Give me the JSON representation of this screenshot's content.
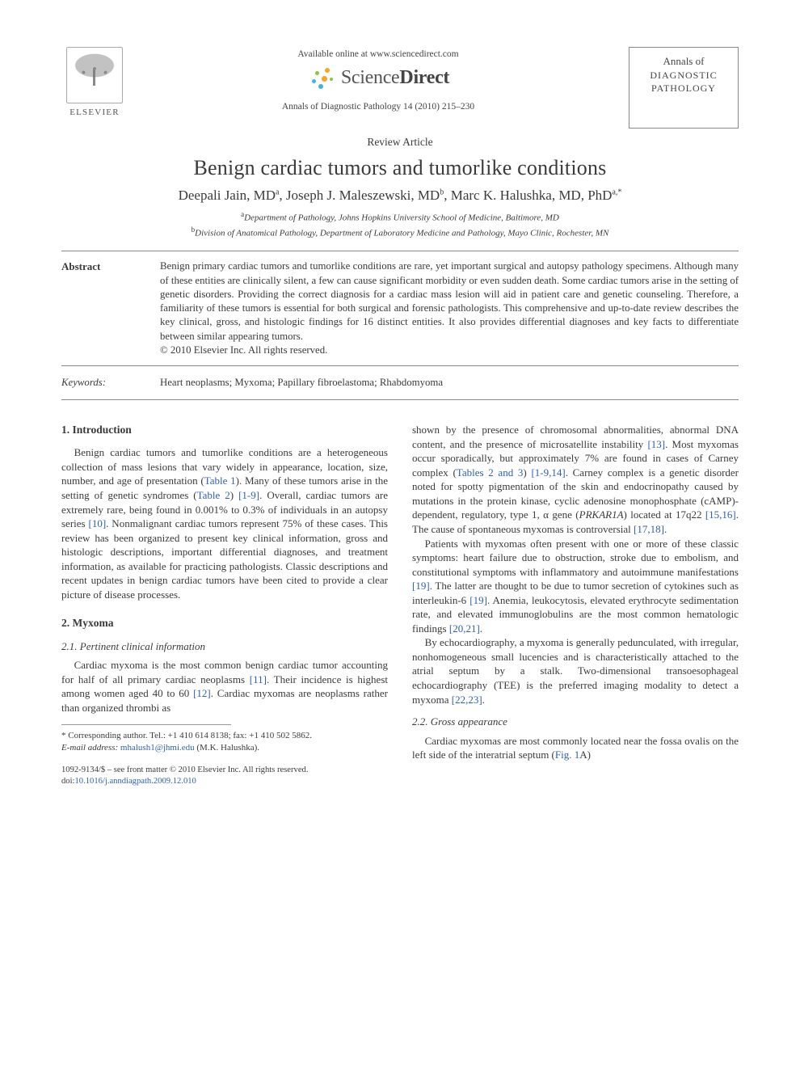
{
  "publisher": {
    "name": "ELSEVIER",
    "available_line": "Available online at www.sciencedirect.com",
    "brand_plain": "Science",
    "brand_bold": "Direct",
    "citation_line": "Annals of Diagnostic Pathology 14 (2010) 215–230"
  },
  "journal_box": {
    "line1": "Annals of",
    "line2": "DIAGNOSTIC",
    "line3": "PATHOLOGY"
  },
  "article": {
    "type": "Review Article",
    "title": "Benign cardiac tumors and tumorlike conditions",
    "authors_html": "Deepali Jain, MD<sup>a</sup>, Joseph J. Maleszewski, MD<sup>b</sup>, Marc K. Halushka, MD, PhD<sup>a,*</sup>",
    "affiliations": {
      "a": "Department of Pathology, Johns Hopkins University School of Medicine, Baltimore, MD",
      "b": "Division of Anatomical Pathology, Department of Laboratory Medicine and Pathology, Mayo Clinic, Rochester, MN"
    }
  },
  "abstract": {
    "label": "Abstract",
    "text": "Benign primary cardiac tumors and tumorlike conditions are rare, yet important surgical and autopsy pathology specimens. Although many of these entities are clinically silent, a few can cause significant morbidity or even sudden death. Some cardiac tumors arise in the setting of genetic disorders. Providing the correct diagnosis for a cardiac mass lesion will aid in patient care and genetic counseling. Therefore, a familiarity of these tumors is essential for both surgical and forensic pathologists. This comprehensive and up-to-date review describes the key clinical, gross, and histologic findings for 16 distinct entities. It also provides differential diagnoses and key facts to differentiate between similar appearing tumors.",
    "copyright": "© 2010 Elsevier Inc. All rights reserved."
  },
  "keywords": {
    "label": "Keywords:",
    "text": "Heart neoplasms; Myxoma; Papillary fibroelastoma; Rhabdomyoma"
  },
  "body": {
    "col1": {
      "s1_heading": "1. Introduction",
      "s1_p1a": "Benign cardiac tumors and tumorlike conditions are a heterogeneous collection of mass lesions that vary widely in appearance, location, size, number, and age of presentation (",
      "s1_link1": "Table 1",
      "s1_p1b": "). Many of these tumors arise in the setting of genetic syndromes (",
      "s1_link2": "Table 2",
      "s1_p1c": ") ",
      "s1_link3": "[1-9]",
      "s1_p1d": ". Overall, cardiac tumors are extremely rare, being found in 0.001% to 0.3% of individuals in an autopsy series ",
      "s1_link4": "[10]",
      "s1_p1e": ". Nonmalignant cardiac tumors represent 75% of these cases. This review has been organized to present key clinical information, gross and histologic descriptions, important differential diagnoses, and treatment information, as available for practicing pathologists. Classic descriptions and recent updates in benign cardiac tumors have been cited to provide a clear picture of disease processes.",
      "s2_heading": "2. Myxoma",
      "s21_heading": "2.1. Pertinent clinical information",
      "s21_p1a": "Cardiac myxoma is the most common benign cardiac tumor accounting for half of all primary cardiac neoplasms ",
      "s21_link1": "[11]",
      "s21_p1b": ". Their incidence is highest among women aged 40 to 60 ",
      "s21_link2": "[12]",
      "s21_p1c": ". Cardiac myxomas are neoplasms rather than organized thrombi as"
    },
    "col2": {
      "p1a": "shown by the presence of chromosomal abnormalities, abnormal DNA content, and the presence of microsatellite instability ",
      "link1": "[13]",
      "p1b": ". Most myxomas occur sporadically, but approximately 7% are found in cases of Carney complex (",
      "link2": "Tables 2 and 3",
      "p1c": ") ",
      "link3": "[1-9,14]",
      "p1d": ". Carney complex is a genetic disorder noted for spotty pigmentation of the skin and endocrinopathy caused by mutations in the protein kinase, cyclic adenosine monophosphate (cAMP)-dependent, regulatory, type 1, α gene (",
      "gene": "PRKAR1A",
      "p1e": ") located at 17q22 ",
      "link4": "[15,16]",
      "p1f": ". The cause of spontaneous myxomas is controversial ",
      "link5": "[17,18]",
      "p1g": ".",
      "p2a": "Patients with myxomas often present with one or more of these classic symptoms: heart failure due to obstruction, stroke due to embolism, and constitutional symptoms with inflammatory and autoimmune manifestations ",
      "link6": "[19]",
      "p2b": ". The latter are thought to be due to tumor secretion of cytokines such as interleukin-6 ",
      "link7": "[19]",
      "p2c": ". Anemia, leukocytosis, elevated erythrocyte sedimentation rate, and elevated immunoglobulins are the most common hematologic findings ",
      "link8": "[20,21]",
      "p2d": ".",
      "p3a": "By echocardiography, a myxoma is generally pedunculated, with irregular, nonhomogeneous small lucencies and is characteristically attached to the atrial septum by a stalk. Two-dimensional transoesophageal echocardiography (TEE) is the preferred imaging modality to detect a myxoma ",
      "link9": "[22,23]",
      "p3b": ".",
      "s22_heading": "2.2. Gross appearance",
      "s22_p1a": "Cardiac myxomas are most commonly located near the fossa ovalis on the left side of the interatrial septum (",
      "s22_link1": "Fig. 1",
      "s22_p1b": "A)"
    }
  },
  "footnote": {
    "corr": "* Corresponding author. Tel.: +1 410 614 8138; fax: +1 410 502 5862.",
    "email_label": "E-mail address:",
    "email": "mhalush1@jhmi.edu",
    "email_tail": " (M.K. Halushka).",
    "issn_line": "1092-9134/$ – see front matter © 2010 Elsevier Inc. All rights reserved.",
    "doi_label": "doi:",
    "doi": "10.1016/j.anndiagpath.2009.12.010"
  },
  "colors": {
    "text": "#3a3a3a",
    "link": "#2f5fb5",
    "rule": "#888888",
    "background": "#ffffff"
  }
}
